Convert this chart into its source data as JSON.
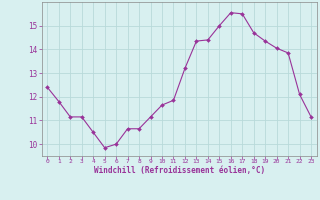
{
  "x": [
    0,
    1,
    2,
    3,
    4,
    5,
    6,
    7,
    8,
    9,
    10,
    11,
    12,
    13,
    14,
    15,
    16,
    17,
    18,
    19,
    20,
    21,
    22,
    23
  ],
  "y": [
    12.4,
    11.8,
    11.15,
    11.15,
    10.5,
    9.85,
    10.0,
    10.65,
    10.65,
    11.15,
    11.65,
    11.85,
    13.2,
    14.35,
    14.4,
    15.0,
    15.55,
    15.5,
    14.7,
    14.35,
    14.05,
    13.85,
    12.1,
    11.15
  ],
  "line_color": "#993399",
  "marker": "D",
  "marker_size": 2.0,
  "bg_color": "#d8f0f0",
  "grid_color": "#b8dada",
  "xlabel": "Windchill (Refroidissement éolien,°C)",
  "xlabel_color": "#993399",
  "tick_color": "#993399",
  "spine_color": "#888888",
  "ylim": [
    9.5,
    16.0
  ],
  "xlim": [
    -0.5,
    23.5
  ],
  "xticks": [
    0,
    1,
    2,
    3,
    4,
    5,
    6,
    7,
    8,
    9,
    10,
    11,
    12,
    13,
    14,
    15,
    16,
    17,
    18,
    19,
    20,
    21,
    22,
    23
  ],
  "yticks": [
    10,
    11,
    12,
    13,
    14,
    15
  ],
  "figsize": [
    3.2,
    2.0
  ],
  "dpi": 100
}
